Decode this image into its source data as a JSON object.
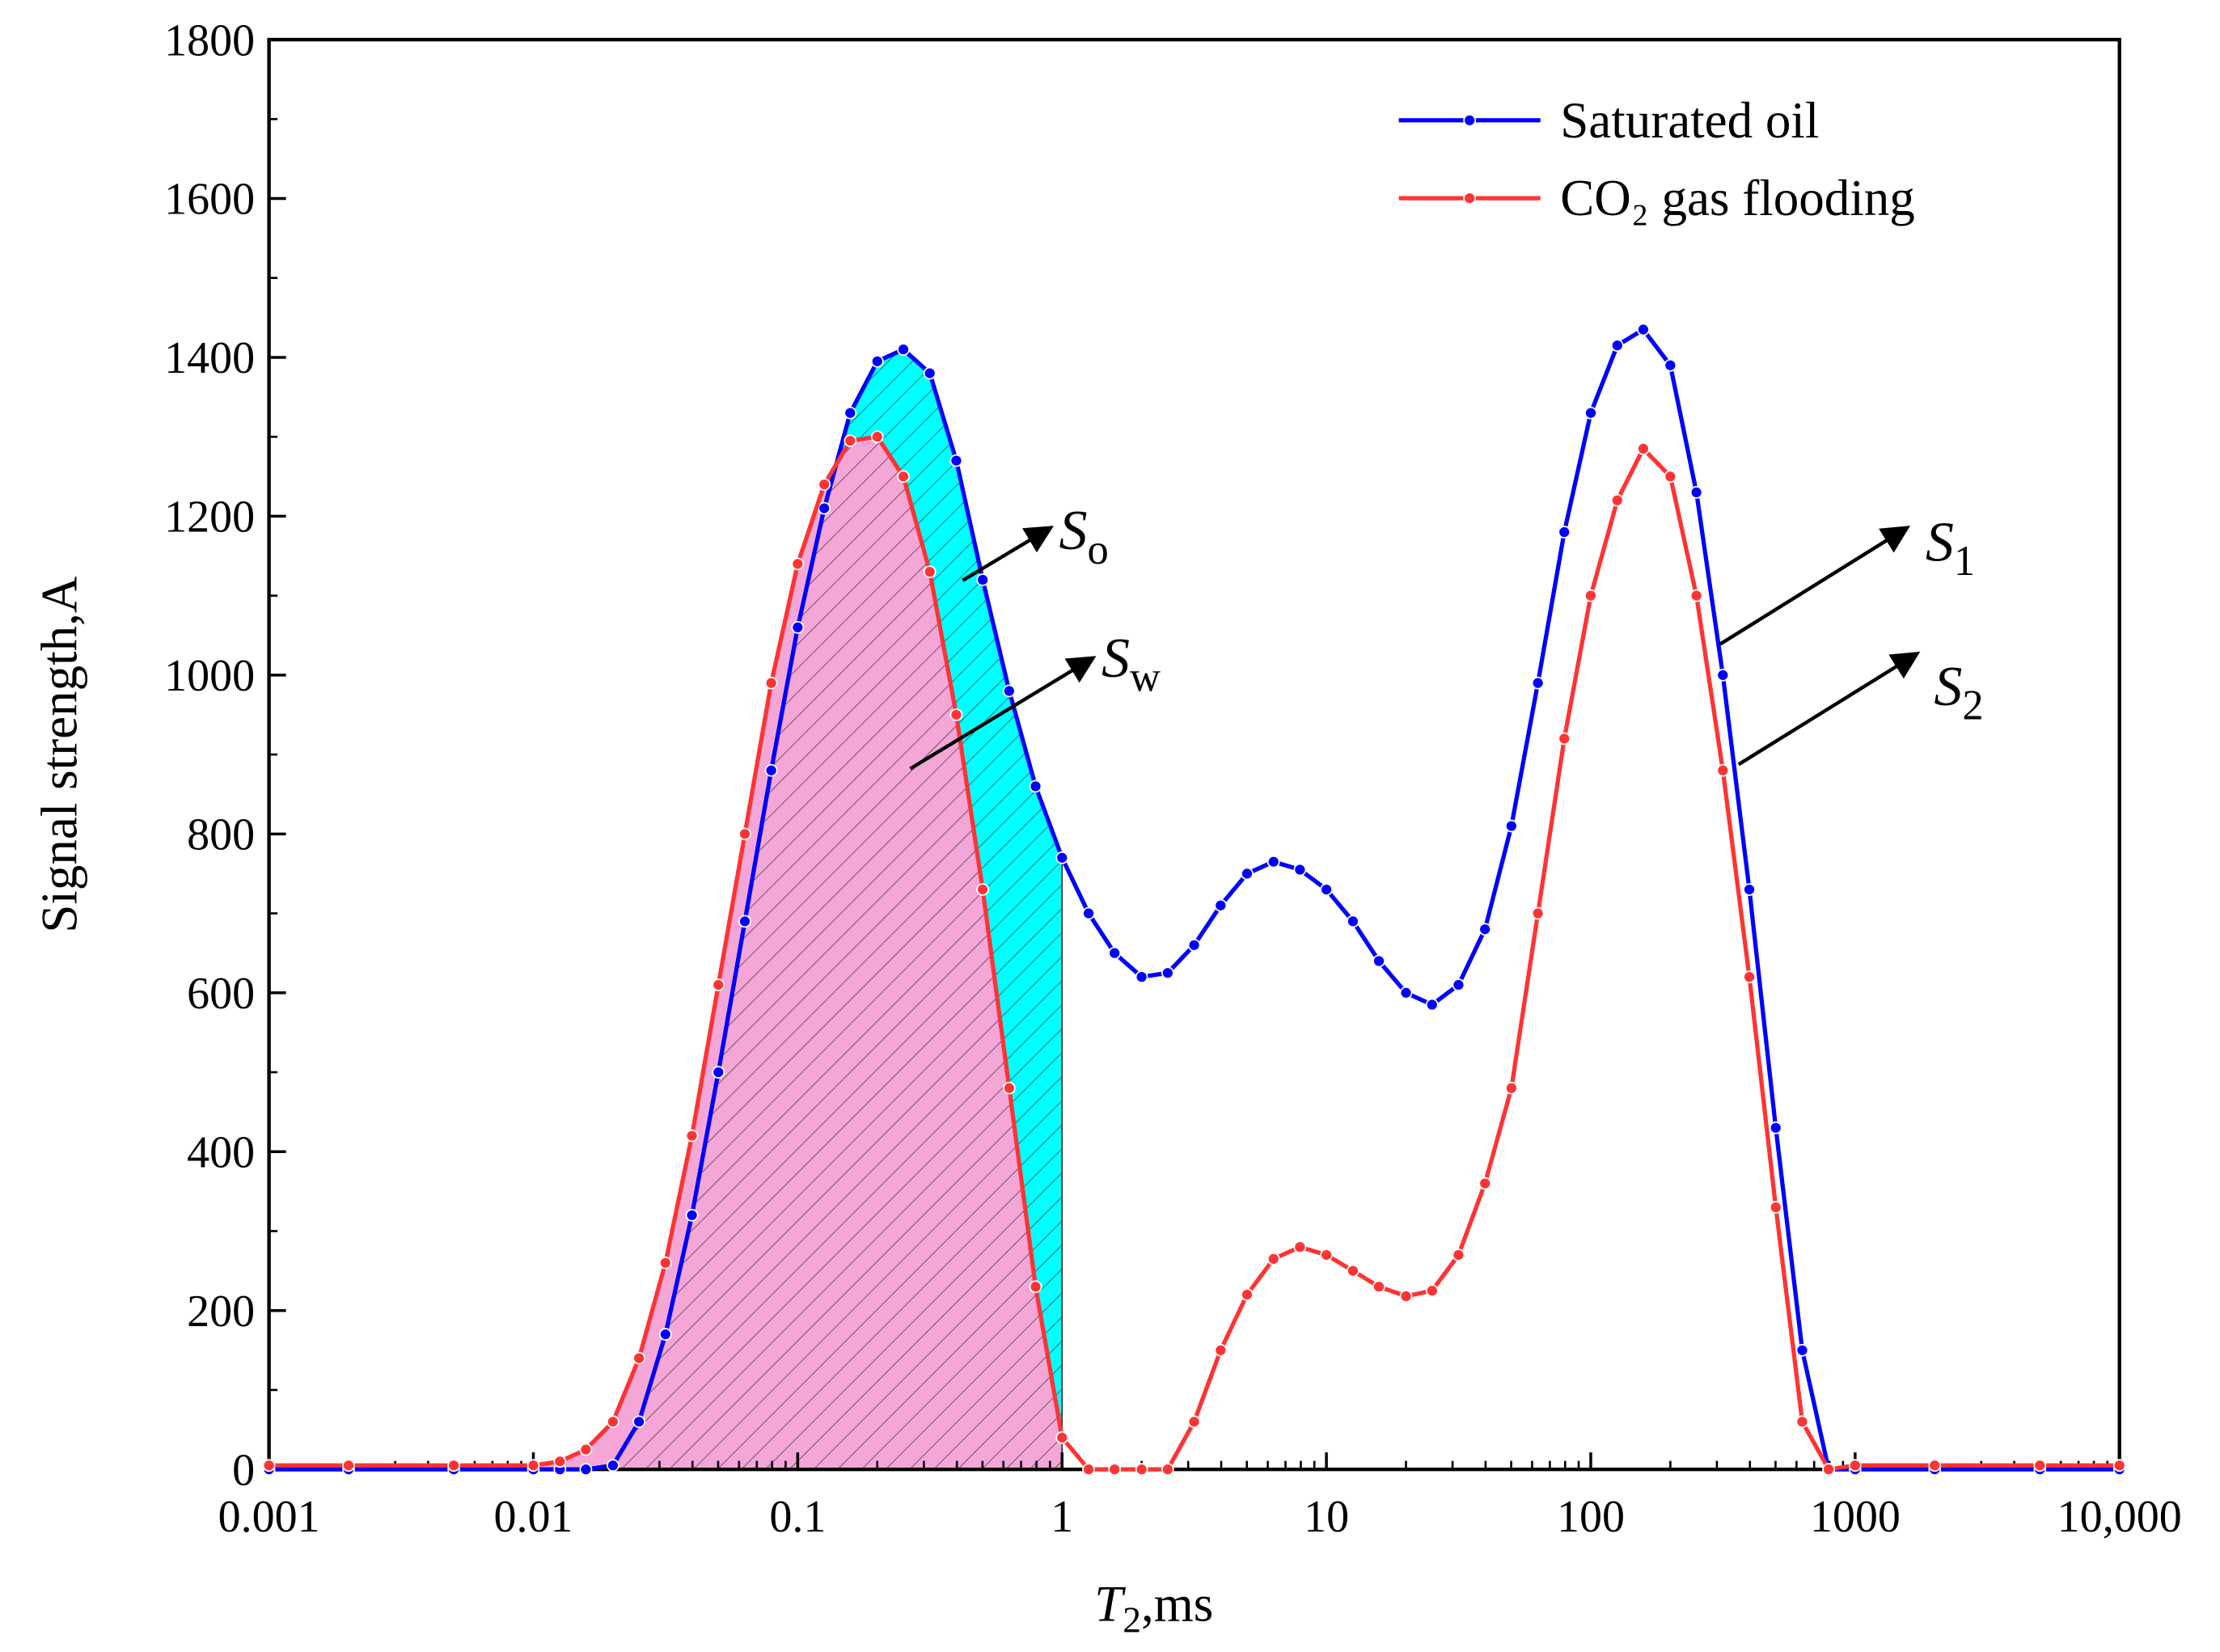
{
  "chart_data": {
    "type": "line",
    "xlabel_parts": [
      "T",
      "2",
      ",ms"
    ],
    "ylabel": "Signal strength,A",
    "xscale": "log",
    "xlim": [
      0.001,
      10000
    ],
    "xticks": [
      0.001,
      0.01,
      0.1,
      1,
      10,
      100,
      1000,
      {
        "value": 10000,
        "label": "10,000"
      }
    ],
    "ylim": [
      0,
      1800
    ],
    "yticks": [
      0,
      200,
      400,
      600,
      800,
      1000,
      1200,
      1400,
      1600,
      1800
    ],
    "legend": "upper right",
    "shaded_region": {
      "xmax": 1,
      "upper_color": "#00ffff",
      "lower_color": "#f4a6d7"
    },
    "x": [
      0.001,
      0.002,
      0.005,
      0.01,
      0.0126,
      0.0158,
      0.02,
      0.0251,
      0.0316,
      0.0398,
      0.0501,
      0.0631,
      0.0794,
      0.1,
      0.126,
      0.158,
      0.2,
      0.251,
      0.316,
      0.398,
      0.501,
      0.631,
      0.794,
      1,
      1.26,
      1.58,
      2,
      2.51,
      3.16,
      3.98,
      5.01,
      6.31,
      7.94,
      10,
      12.6,
      15.8,
      20,
      25.1,
      31.6,
      39.8,
      50.1,
      63.1,
      79.4,
      100,
      126,
      158,
      200,
      251,
      316,
      398,
      501,
      631,
      794,
      1000,
      2000,
      5000,
      10000
    ],
    "series": [
      {
        "name": "Saturated oil",
        "color": "#0000ff",
        "values": [
          0,
          0,
          0,
          0,
          0,
          0,
          5,
          60,
          170,
          320,
          500,
          690,
          880,
          1060,
          1210,
          1330,
          1395,
          1410,
          1380,
          1270,
          1120,
          980,
          860,
          770,
          700,
          650,
          620,
          625,
          660,
          710,
          750,
          765,
          755,
          730,
          690,
          640,
          600,
          585,
          610,
          680,
          810,
          990,
          1180,
          1330,
          1415,
          1435,
          1390,
          1230,
          1000,
          730,
          430,
          150,
          0,
          0,
          0,
          0,
          0
        ]
      },
      {
        "name": "CO₂ gas flooding",
        "color": "#ff3333",
        "values": [
          5,
          5,
          5,
          5,
          10,
          25,
          60,
          140,
          260,
          420,
          610,
          800,
          990,
          1140,
          1240,
          1295,
          1300,
          1250,
          1130,
          950,
          730,
          480,
          230,
          40,
          0,
          0,
          0,
          0,
          60,
          150,
          220,
          265,
          280,
          270,
          250,
          230,
          218,
          225,
          270,
          360,
          480,
          700,
          920,
          1100,
          1220,
          1285,
          1250,
          1100,
          880,
          620,
          330,
          60,
          0,
          5,
          5,
          5,
          5
        ]
      }
    ],
    "annotations": [
      {
        "text": "S",
        "sub": "o"
      },
      {
        "text": "S",
        "sub": "w"
      },
      {
        "text": "S",
        "sub": "1"
      },
      {
        "text": "S",
        "sub": "2"
      }
    ]
  }
}
